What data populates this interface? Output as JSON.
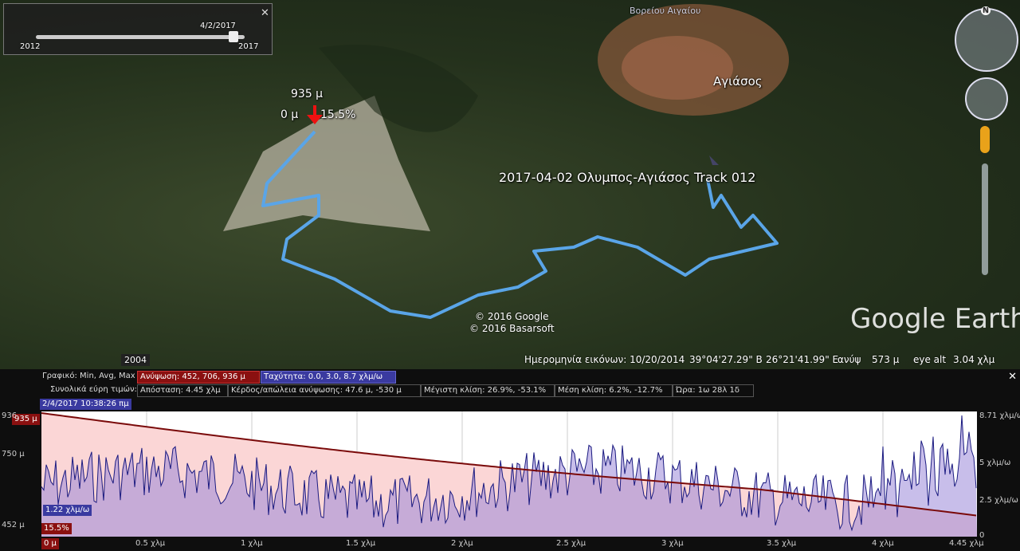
{
  "time_slider": {
    "date": "4/2/2017",
    "start": "2012",
    "end": "2017"
  },
  "map": {
    "region": "Βορείου Αιγαίου",
    "town": "Αγιάσος",
    "marker_elevation": "935 μ",
    "marker_distance": "0 μ",
    "marker_slope": "15.5%",
    "track_name": "2017-04-02 Ολυμπος-Αγιάσος  Track 012",
    "copyright": [
      "© 2016 Google",
      "© 2016 Basarsoft"
    ],
    "logo": "Google Earth",
    "historical_year": "2004",
    "compass": "N"
  },
  "status_bar": {
    "imagery_date": "Ημερομηνία εικόνων: 10/20/2014",
    "latitude": "39°04'27.29\" Β",
    "longitude": "26°21'41.99\" Ε",
    "elevation_label": "ανύψ",
    "elevation": "573 μ",
    "eye_alt_label": "eye alt",
    "eye_alt": "3.04 χλμ"
  },
  "profile": {
    "row1": [
      "Γραφικό: Min, Avg, Max",
      "Ανύψωση: 452, 706, 936 μ",
      "Ταχύτητα: 0.0, 3.0, 8.7 χλμ/ω"
    ],
    "row2": [
      "Συνολικά εύρη τιμών:",
      "Απόσταση: 4.45 χλμ",
      "Κέρδος/απώλεια ανύψωσης: 47.6 μ, -530 μ",
      "Μέγιστη κλίση: 26.9%, -53.1%",
      "Μέση κλίση: 6.2%, -12.7%",
      "Ώρα: 1ω 28λ 1δ"
    ],
    "cursor": {
      "time": "2/4/2017 10:38:26 πμ",
      "elevation": "935 μ",
      "speed": "1.22 χλμ/ω",
      "slope": "15.5%",
      "distance": "0 μ"
    },
    "left_axis": [
      "936",
      "750 μ",
      "452 μ"
    ],
    "right_axis": [
      "8.71 χλμ/ω",
      "5 χλμ/ω",
      "2.5 χλμ/ω",
      "0"
    ],
    "x_axis": [
      "0.5 χλμ",
      "1 χλμ",
      "1.5 χλμ",
      "2 χλμ",
      "2.5 χλμ",
      "3 χλμ",
      "3.5 χλμ",
      "4 χλμ",
      "4.45 χλμ"
    ]
  }
}
